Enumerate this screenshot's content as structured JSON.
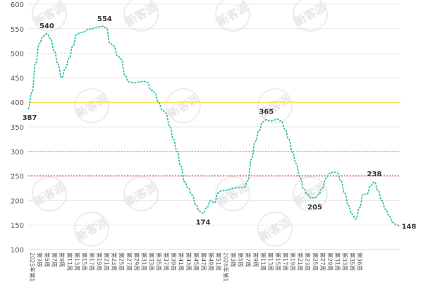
{
  "chart_data": {
    "type": "line",
    "title": "",
    "xlabel": "",
    "ylabel": "",
    "ylim": [
      100,
      600
    ],
    "yticks": [
      100,
      150,
      200,
      250,
      300,
      350,
      400,
      450,
      500,
      550,
      600
    ],
    "grid": true,
    "watermark": "新客派",
    "series": [
      {
        "color": "#2cbfaf",
        "style": "dotted",
        "values": [
          387,
          420,
          480,
          520,
          535,
          540,
          530,
          505,
          478,
          450,
          470,
          490,
          515,
          538,
          542,
          544,
          548,
          550,
          552,
          554,
          555,
          552,
          520,
          515,
          495,
          488,
          455,
          442,
          440,
          440,
          442,
          443,
          441,
          425,
          420,
          400,
          385,
          378,
          352,
          325,
          300,
          270,
          238,
          225,
          212,
          192,
          178,
          174,
          186,
          200,
          195,
          215,
          220,
          220,
          223,
          225,
          226,
          226,
          227,
          240,
          285,
          320,
          342,
          360,
          365,
          362,
          364,
          366,
          362,
          345,
          325,
          298,
          275,
          248,
          224,
          212,
          206,
          205,
          212,
          225,
          245,
          255,
          258,
          257,
          240,
          215,
          190,
          172,
          162,
          185,
          213,
          213,
          230,
          238,
          220,
          200,
          182,
          168,
          155,
          150,
          148
        ]
      }
    ],
    "reference_lines": [
      {
        "value": 400,
        "color": "#f2e84a",
        "style": "solid"
      },
      {
        "value": 300,
        "color": "#f0a030",
        "style": "dotted"
      },
      {
        "value": 250,
        "color": "#d9304a",
        "style": "dotted"
      }
    ],
    "annotations": [
      {
        "index": 0,
        "value": 387,
        "text": "387",
        "pos": "below-left"
      },
      {
        "index": 5,
        "value": 540,
        "text": "540",
        "pos": "above"
      },
      {
        "index": 19,
        "value": 554,
        "text": "554",
        "pos": "above-right"
      },
      {
        "index": 47,
        "value": 174,
        "text": "174",
        "pos": "below"
      },
      {
        "index": 64,
        "value": 365,
        "text": "365",
        "pos": "above"
      },
      {
        "index": 77,
        "value": 205,
        "text": "205",
        "pos": "below"
      },
      {
        "index": 93,
        "value": 238,
        "text": "238",
        "pos": "above"
      },
      {
        "index": 100,
        "value": 148,
        "text": "148",
        "pos": "right"
      }
    ],
    "xtick_labels": [
      "2025年第1周",
      "第3周",
      "第5周",
      "第7周",
      "第9周",
      "第11周",
      "第13周",
      "第15周",
      "第17周",
      "第19周",
      "第21周",
      "第23周",
      "第25周",
      "第27周",
      "第29周",
      "第31周",
      "第33周",
      "第35周",
      "第37周",
      "第39周",
      "第41周",
      "第43周",
      "第45周",
      "第47周",
      "第49周",
      "第51周",
      "2026年第1周",
      "第3周",
      "第5周",
      "第7周",
      "第9周",
      "第11周",
      "第13周",
      "第15周",
      "第17周",
      "第19周",
      "第21周",
      "第23周",
      "第25周",
      "第27周",
      "第29周",
      "第31周",
      "第33周",
      "第35周",
      "第36周"
    ]
  }
}
